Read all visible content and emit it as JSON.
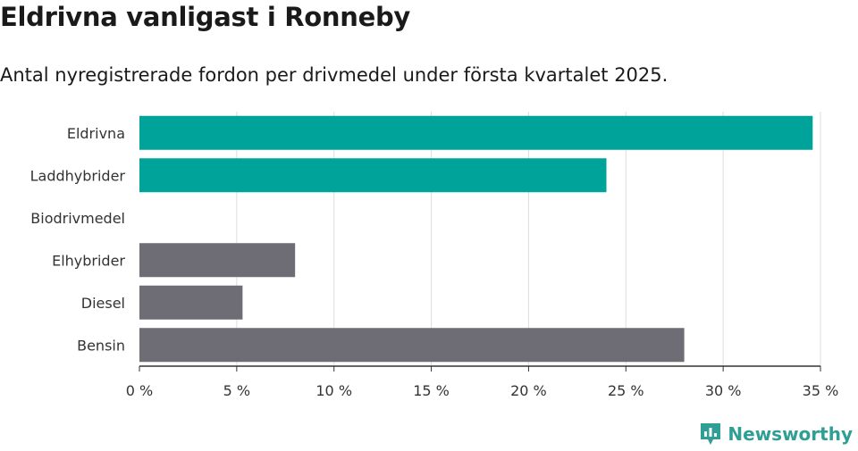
{
  "title": "Eldrivna vanligast i Ronneby",
  "subtitle": "Antal nyregistrerade fordon per drivmedel under första kvartalet 2025.",
  "brand": "Newsworthy",
  "colors": {
    "highlight": "#00a39a",
    "default": "#6e6d75",
    "grid": "#dddddd",
    "axis": "#333333"
  },
  "chart_data": {
    "type": "bar",
    "orientation": "horizontal",
    "categories": [
      "Eldrivna",
      "Laddhybrider",
      "Biodrivmedel",
      "Elhybrider",
      "Diesel",
      "Bensin"
    ],
    "values": [
      34.6,
      24.0,
      0,
      8.0,
      5.3,
      28.0
    ],
    "highlighted": [
      true,
      true,
      false,
      false,
      false,
      false
    ],
    "xlim": [
      0,
      35
    ],
    "xticks": [
      0,
      5,
      10,
      15,
      20,
      25,
      30,
      35
    ],
    "xtick_labels": [
      "0 %",
      "5 %",
      "10 %",
      "15 %",
      "20 %",
      "25 %",
      "30 %",
      "35 %"
    ],
    "grid": true
  }
}
